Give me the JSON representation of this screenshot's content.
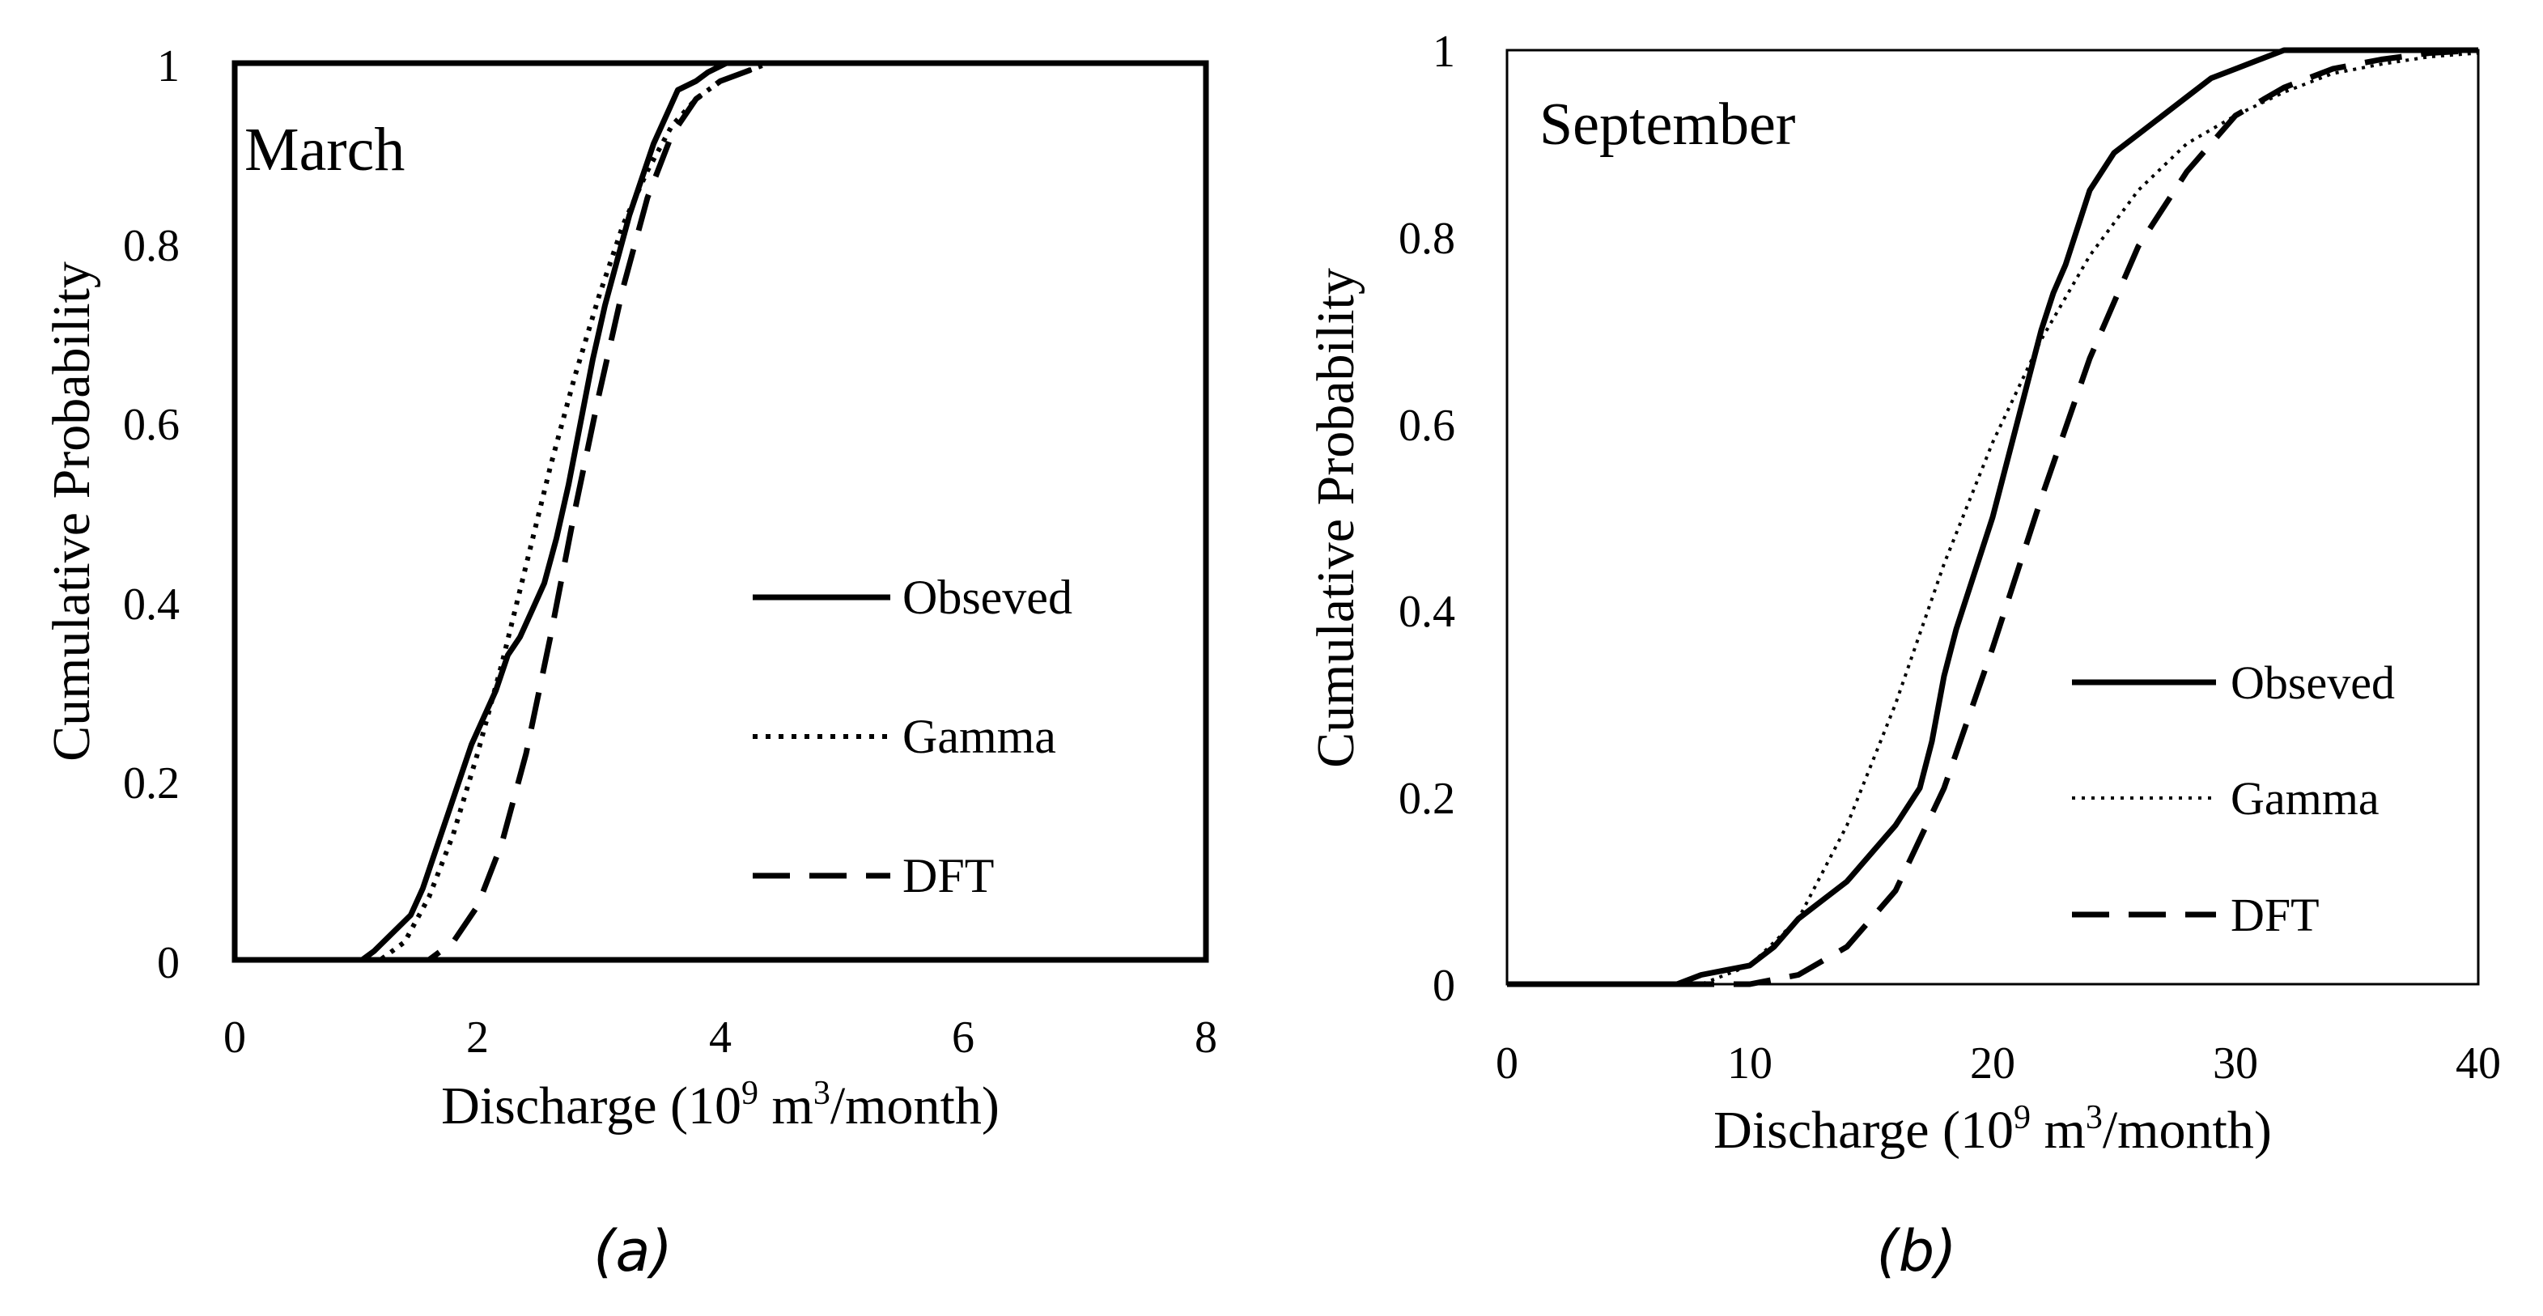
{
  "figure": {
    "captions": [
      "(a)",
      "(b)"
    ]
  },
  "chart_data": [
    {
      "type": "line",
      "panel_label": "March",
      "caption": "(a)",
      "xlabel_parts": [
        "Discharge (10",
        "9",
        " m",
        "3",
        "/month)"
      ],
      "ylabel": "Cumulative Probability",
      "xlim": [
        0,
        8
      ],
      "ylim": [
        0,
        1
      ],
      "x_ticks": [
        0,
        2,
        4,
        6,
        8
      ],
      "y_ticks": [
        0,
        0.2,
        0.4,
        0.6,
        0.8,
        1
      ],
      "x_tick_labels": [
        "0",
        "2",
        "4",
        "6",
        "8"
      ],
      "y_tick_labels": [
        "0",
        "0.2",
        "0.4",
        "0.6",
        "0.8",
        "1"
      ],
      "legend_position": "right-middle",
      "series": [
        {
          "name": "Obseved",
          "style": "solid",
          "x": [
            0,
            1.05,
            1.15,
            1.3,
            1.45,
            1.55,
            1.65,
            1.75,
            1.85,
            1.95,
            2.05,
            2.15,
            2.25,
            2.35,
            2.45,
            2.55,
            2.65,
            2.75,
            2.85,
            2.95,
            3.05,
            3.15,
            3.25,
            3.35,
            3.45,
            3.55,
            3.65,
            3.8,
            3.9,
            4.05,
            4.2,
            4.5,
            8
          ],
          "y": [
            0,
            0,
            0.01,
            0.03,
            0.05,
            0.08,
            0.12,
            0.16,
            0.2,
            0.24,
            0.27,
            0.3,
            0.34,
            0.36,
            0.39,
            0.42,
            0.47,
            0.53,
            0.6,
            0.67,
            0.73,
            0.78,
            0.83,
            0.87,
            0.91,
            0.94,
            0.97,
            0.98,
            0.99,
            1.0,
            1.0,
            1.0,
            1.0
          ]
        },
        {
          "name": "Gamma",
          "style": "dotted",
          "x": [
            0,
            1.2,
            1.4,
            1.6,
            1.8,
            2.0,
            2.2,
            2.4,
            2.6,
            2.8,
            3.0,
            3.2,
            3.4,
            3.6,
            3.8,
            4.0,
            4.2,
            4.4,
            8
          ],
          "y": [
            0,
            0,
            0.02,
            0.07,
            0.14,
            0.23,
            0.33,
            0.44,
            0.55,
            0.65,
            0.74,
            0.82,
            0.88,
            0.93,
            0.96,
            0.98,
            0.99,
            1.0,
            1.0
          ]
        },
        {
          "name": "DFT",
          "style": "dashed",
          "x": [
            0,
            1.6,
            1.8,
            2.0,
            2.2,
            2.4,
            2.6,
            2.8,
            3.0,
            3.2,
            3.4,
            3.6,
            3.8,
            4.0,
            4.2,
            4.4,
            8
          ],
          "y": [
            0,
            0,
            0.02,
            0.06,
            0.13,
            0.23,
            0.36,
            0.5,
            0.63,
            0.75,
            0.85,
            0.92,
            0.96,
            0.98,
            0.99,
            1.0,
            1.0
          ]
        }
      ]
    },
    {
      "type": "line",
      "panel_label": "September",
      "caption": "(b)",
      "xlabel_parts": [
        "Discharge (10",
        "9",
        " m",
        "3",
        "/month)"
      ],
      "ylabel": "Cumulative Probability",
      "xlim": [
        0,
        40
      ],
      "ylim": [
        0,
        1
      ],
      "x_ticks": [
        0,
        10,
        20,
        30,
        40
      ],
      "y_ticks": [
        0,
        0.2,
        0.4,
        0.6,
        0.8,
        1
      ],
      "x_tick_labels": [
        "0",
        "10",
        "20",
        "30",
        "40"
      ],
      "y_tick_labels": [
        "0",
        "0.2",
        "0.4",
        "0.6",
        "0.8",
        "1"
      ],
      "legend_position": "right-middle",
      "series": [
        {
          "name": "Obseved",
          "style": "solid",
          "x": [
            0,
            7,
            8,
            9,
            10,
            11,
            12,
            13,
            14,
            15,
            16,
            17,
            17.5,
            18,
            18.5,
            19,
            19.5,
            20,
            20.5,
            21,
            21.5,
            22,
            22.5,
            23,
            23.5,
            24,
            25,
            26,
            27,
            28,
            29,
            30,
            31,
            32,
            33,
            40
          ],
          "y": [
            0,
            0,
            0.01,
            0.015,
            0.02,
            0.04,
            0.07,
            0.09,
            0.11,
            0.14,
            0.17,
            0.21,
            0.26,
            0.33,
            0.38,
            0.42,
            0.46,
            0.5,
            0.55,
            0.6,
            0.65,
            0.7,
            0.74,
            0.77,
            0.81,
            0.85,
            0.89,
            0.91,
            0.93,
            0.95,
            0.97,
            0.98,
            0.99,
            1.0,
            1.0,
            1.0
          ]
        },
        {
          "name": "Gamma",
          "style": "dotted",
          "x": [
            0,
            8,
            10,
            12,
            14,
            16,
            18,
            20,
            22,
            24,
            26,
            28,
            30,
            32,
            34,
            36,
            38,
            40
          ],
          "y": [
            0,
            0,
            0.02,
            0.07,
            0.17,
            0.3,
            0.45,
            0.58,
            0.69,
            0.78,
            0.85,
            0.9,
            0.93,
            0.955,
            0.975,
            0.985,
            0.993,
            0.997
          ]
        },
        {
          "name": "DFT",
          "style": "dashed",
          "x": [
            0,
            10,
            12,
            14,
            16,
            18,
            20,
            22,
            24,
            26,
            28,
            30,
            32,
            34,
            36,
            38,
            40
          ],
          "y": [
            0,
            0,
            0.01,
            0.04,
            0.1,
            0.21,
            0.36,
            0.52,
            0.67,
            0.79,
            0.87,
            0.93,
            0.96,
            0.98,
            0.99,
            0.997,
            1.0
          ]
        }
      ]
    }
  ]
}
